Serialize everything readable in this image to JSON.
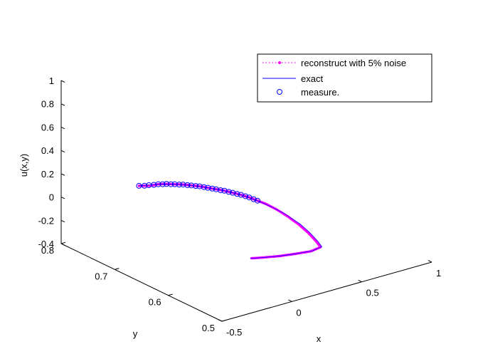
{
  "chart_data": {
    "type": "line",
    "title": "",
    "xlabel": "x",
    "ylabel": "y",
    "zlabel": "u(x,y)",
    "xlim": [
      -0.5,
      1
    ],
    "ylim": [
      0.5,
      0.8
    ],
    "zlim": [
      -0.4,
      1
    ],
    "x_ticks": [
      "-0.5",
      "0",
      "0.5",
      "1"
    ],
    "y_ticks": [
      "0.5",
      "0.6",
      "0.7",
      "0.8"
    ],
    "z_ticks": [
      "-0.4",
      "-0.2",
      "0",
      "0.2",
      "0.4",
      "0.6",
      "0.8",
      "1"
    ],
    "grid": false,
    "legend_position": "top-right",
    "series": [
      {
        "name": "reconstruct with 5% noise",
        "style": "dotted-with-point-markers",
        "color": "#ff00ff",
        "points": [
          [
            -0.48,
            0.66,
            0.4
          ],
          [
            -0.44,
            0.65,
            0.41
          ],
          [
            -0.4,
            0.645,
            0.42
          ],
          [
            -0.36,
            0.64,
            0.42
          ],
          [
            -0.32,
            0.635,
            0.415
          ],
          [
            -0.28,
            0.63,
            0.41
          ],
          [
            -0.24,
            0.625,
            0.4
          ],
          [
            -0.2,
            0.62,
            0.39
          ],
          [
            -0.16,
            0.615,
            0.375
          ],
          [
            -0.12,
            0.61,
            0.36
          ],
          [
            -0.08,
            0.605,
            0.345
          ],
          [
            -0.04,
            0.6,
            0.325
          ],
          [
            0.0,
            0.595,
            0.305
          ],
          [
            0.04,
            0.59,
            0.28
          ],
          [
            0.08,
            0.585,
            0.25
          ],
          [
            0.12,
            0.58,
            0.22
          ],
          [
            0.16,
            0.57,
            0.18
          ],
          [
            0.2,
            0.56,
            0.13
          ],
          [
            0.24,
            0.55,
            0.07
          ],
          [
            0.27,
            0.54,
            0.01
          ],
          [
            0.29,
            0.53,
            -0.05
          ],
          [
            0.3,
            0.525,
            -0.09
          ],
          [
            0.25,
            0.53,
            -0.12
          ],
          [
            0.18,
            0.54,
            -0.14
          ],
          [
            0.1,
            0.55,
            -0.155
          ],
          [
            0.03,
            0.56,
            -0.165
          ],
          [
            -0.03,
            0.57,
            -0.175
          ]
        ]
      },
      {
        "name": "exact",
        "style": "solid",
        "color": "#0000ff",
        "points": [
          [
            -0.48,
            0.66,
            0.4
          ],
          [
            -0.4,
            0.645,
            0.42
          ],
          [
            -0.32,
            0.635,
            0.415
          ],
          [
            -0.24,
            0.625,
            0.4
          ],
          [
            -0.16,
            0.615,
            0.375
          ],
          [
            -0.08,
            0.605,
            0.345
          ],
          [
            0.0,
            0.595,
            0.305
          ],
          [
            0.08,
            0.585,
            0.25
          ],
          [
            0.14,
            0.575,
            0.2
          ],
          [
            0.2,
            0.565,
            0.14
          ],
          [
            0.25,
            0.55,
            0.07
          ],
          [
            0.28,
            0.54,
            0.01
          ],
          [
            0.3,
            0.53,
            -0.05
          ],
          [
            0.31,
            0.525,
            -0.09
          ],
          [
            0.26,
            0.53,
            -0.12
          ],
          [
            0.18,
            0.54,
            -0.14
          ],
          [
            0.1,
            0.55,
            -0.155
          ],
          [
            0.03,
            0.56,
            -0.165
          ],
          [
            -0.03,
            0.57,
            -0.175
          ]
        ]
      },
      {
        "name": "measure.",
        "style": "open-circle-markers",
        "color": "#0000ff",
        "points": [
          [
            -0.48,
            0.66,
            0.4
          ],
          [
            -0.46,
            0.655,
            0.405
          ],
          [
            -0.44,
            0.652,
            0.41
          ],
          [
            -0.42,
            0.648,
            0.415
          ],
          [
            -0.4,
            0.645,
            0.42
          ],
          [
            -0.38,
            0.642,
            0.42
          ],
          [
            -0.36,
            0.64,
            0.42
          ],
          [
            -0.34,
            0.637,
            0.418
          ],
          [
            -0.32,
            0.635,
            0.415
          ],
          [
            -0.3,
            0.632,
            0.412
          ],
          [
            -0.28,
            0.63,
            0.41
          ],
          [
            -0.26,
            0.627,
            0.405
          ],
          [
            -0.24,
            0.625,
            0.4
          ],
          [
            -0.22,
            0.622,
            0.395
          ],
          [
            -0.2,
            0.62,
            0.39
          ],
          [
            -0.18,
            0.617,
            0.383
          ],
          [
            -0.16,
            0.615,
            0.375
          ],
          [
            -0.14,
            0.612,
            0.368
          ],
          [
            -0.12,
            0.61,
            0.36
          ],
          [
            -0.1,
            0.607,
            0.352
          ],
          [
            -0.08,
            0.605,
            0.345
          ],
          [
            -0.06,
            0.602,
            0.335
          ],
          [
            -0.04,
            0.6,
            0.325
          ],
          [
            -0.02,
            0.597,
            0.315
          ],
          [
            0.0,
            0.595,
            0.305
          ],
          [
            0.02,
            0.592,
            0.293
          ],
          [
            0.04,
            0.59,
            0.28
          ],
          [
            0.06,
            0.587,
            0.265
          ],
          [
            0.08,
            0.585,
            0.25
          ]
        ]
      }
    ]
  }
}
